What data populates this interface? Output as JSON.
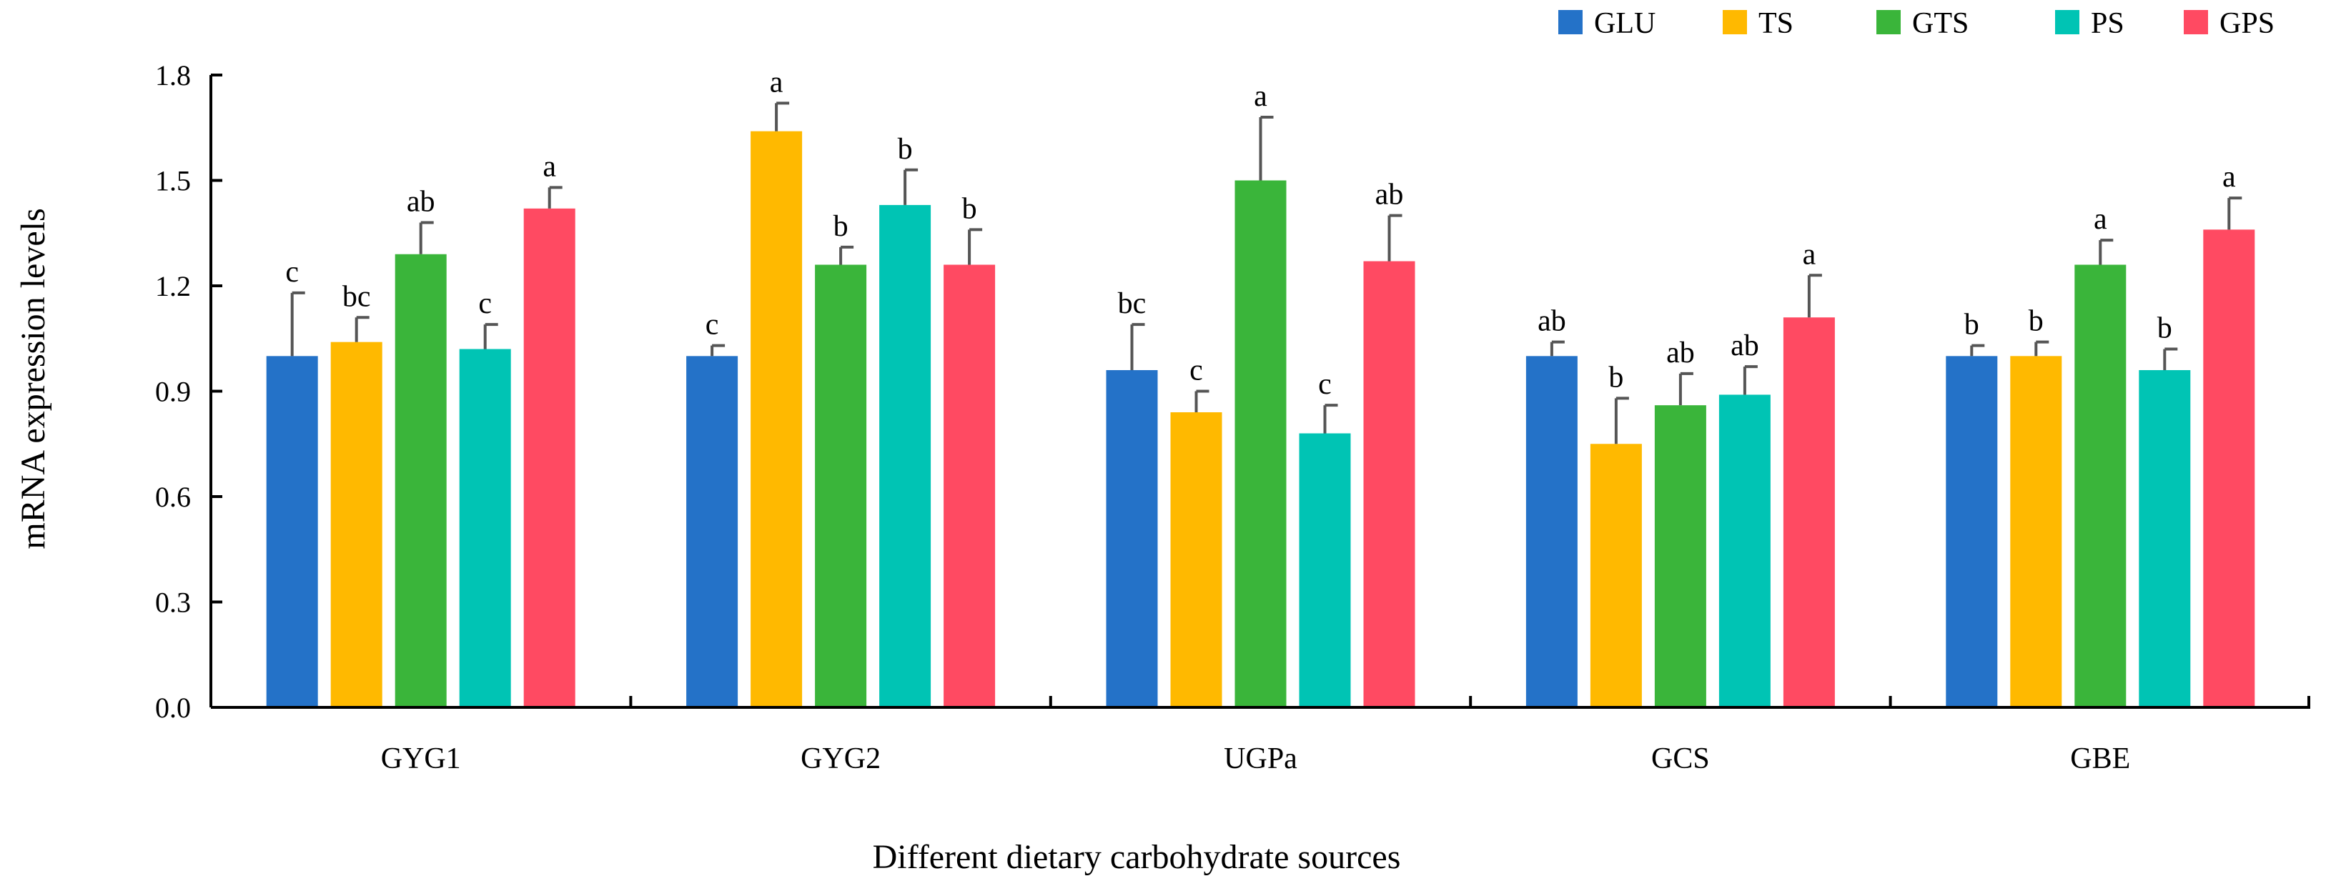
{
  "chart_data": {
    "type": "bar",
    "title": "",
    "xlabel": "Different dietary carbohydrate sources",
    "ylabel": "mRNA expression levels",
    "ylim": [
      0,
      1.8
    ],
    "yticks": [
      "0.0",
      "0.3",
      "0.6",
      "0.9",
      "1.2",
      "1.5",
      "1.8"
    ],
    "grid": false,
    "legend_position": "top-right",
    "categories": [
      "GYG1",
      "GYG2",
      "UGPa",
      "GCS",
      "GBE"
    ],
    "series": [
      {
        "name": "GLU",
        "color": "#2472C8",
        "values": [
          1.0,
          1.0,
          0.96,
          1.0,
          1.0
        ],
        "errors": [
          0.18,
          0.03,
          0.13,
          0.04,
          0.03
        ],
        "labels": [
          "c",
          "c",
          "bc",
          "ab",
          "b"
        ]
      },
      {
        "name": "TS",
        "color": "#FFB900",
        "values": [
          1.04,
          1.64,
          0.84,
          0.75,
          1.0
        ],
        "errors": [
          0.07,
          0.08,
          0.06,
          0.13,
          0.04
        ],
        "labels": [
          "bc",
          "a",
          "c",
          "b",
          "b"
        ]
      },
      {
        "name": "GTS",
        "color": "#3AB53A",
        "values": [
          1.29,
          1.26,
          1.5,
          0.86,
          1.26
        ],
        "errors": [
          0.09,
          0.05,
          0.18,
          0.09,
          0.07
        ],
        "labels": [
          "ab",
          "b",
          "a",
          "ab",
          "a"
        ]
      },
      {
        "name": "PS",
        "color": "#00C4B4",
        "values": [
          1.02,
          1.43,
          0.78,
          0.89,
          0.96
        ],
        "errors": [
          0.07,
          0.1,
          0.08,
          0.08,
          0.06
        ],
        "labels": [
          "c",
          "b",
          "c",
          "ab",
          "b"
        ]
      },
      {
        "name": "GPS",
        "color": "#FF4A62",
        "values": [
          1.42,
          1.26,
          1.27,
          1.11,
          1.36
        ],
        "errors": [
          0.06,
          0.1,
          0.13,
          0.12,
          0.09
        ],
        "labels": [
          "a",
          "b",
          "ab",
          "a",
          "a"
        ]
      }
    ]
  }
}
